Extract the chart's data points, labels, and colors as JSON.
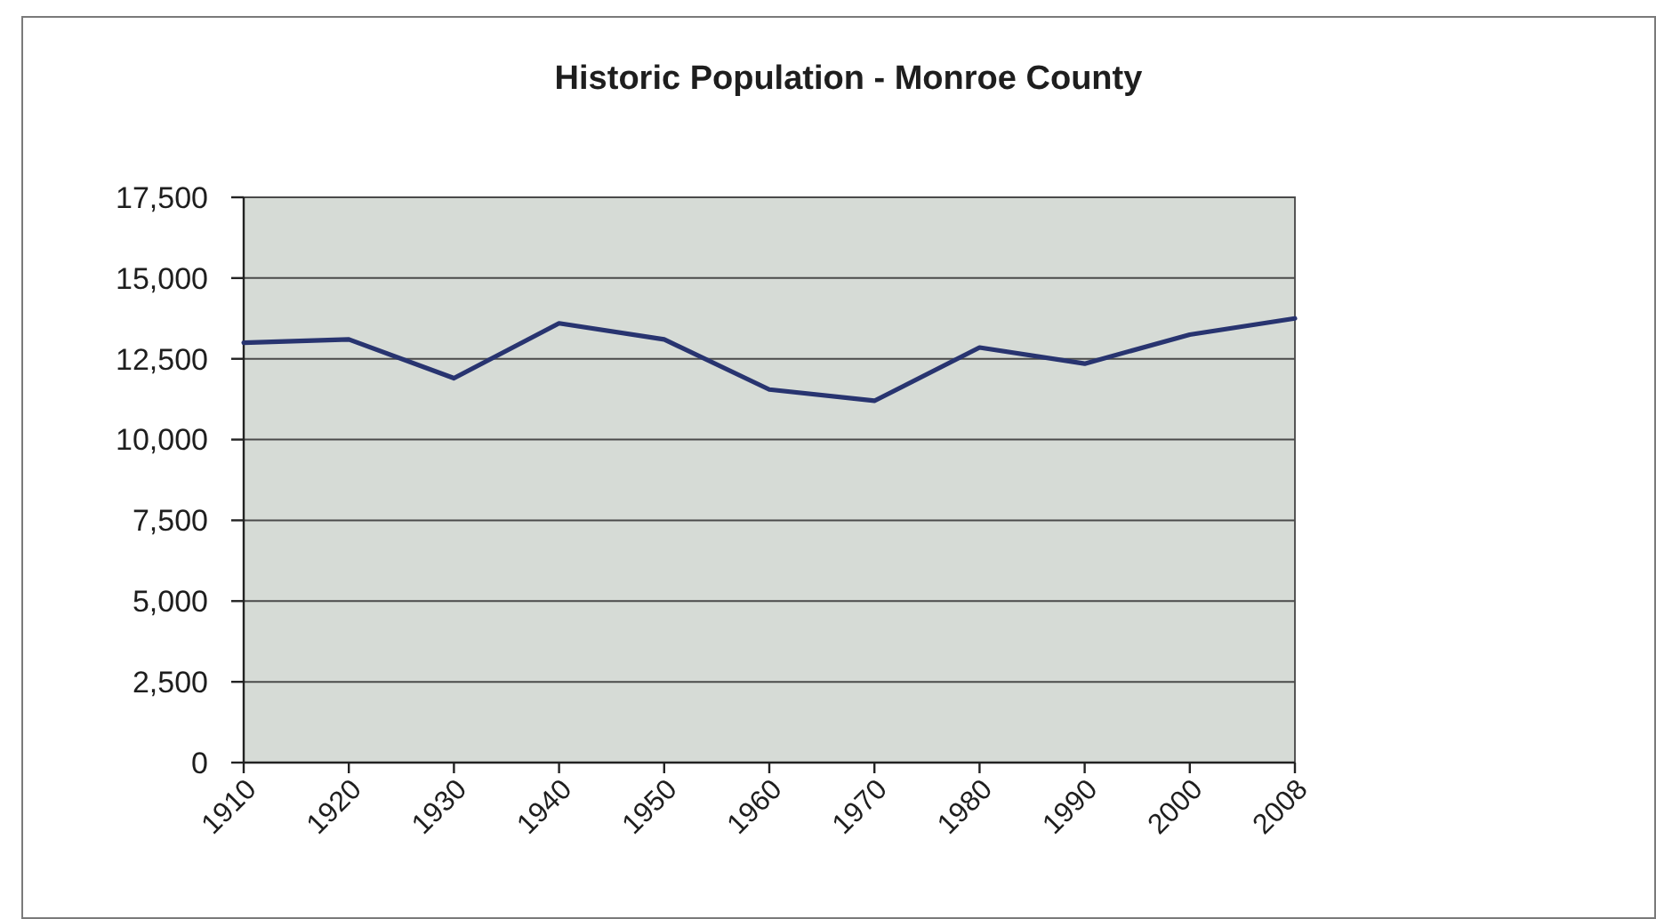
{
  "chart_data": {
    "type": "line",
    "title": "Historic Population - Monroe County",
    "categories": [
      "1910",
      "1920",
      "1930",
      "1940",
      "1950",
      "1960",
      "1970",
      "1980",
      "1990",
      "2000",
      "2008"
    ],
    "values": [
      13000,
      13100,
      11900,
      13600,
      13100,
      11550,
      11200,
      12850,
      12350,
      13250,
      13750
    ],
    "color": "#283470",
    "ylim": [
      0,
      17500
    ],
    "yticks": [
      0,
      {
        "value": 2500,
        "label": "2,500"
      },
      {
        "value": 5000,
        "label": "5,000"
      },
      {
        "value": 7500,
        "label": "7,500"
      },
      {
        "value": 10000,
        "label": "10,000"
      },
      {
        "value": 12500,
        "label": "12,500"
      },
      {
        "value": 15000,
        "label": "15,000"
      },
      {
        "value": 17500,
        "label": "17,500"
      }
    ],
    "grid": "y"
  }
}
